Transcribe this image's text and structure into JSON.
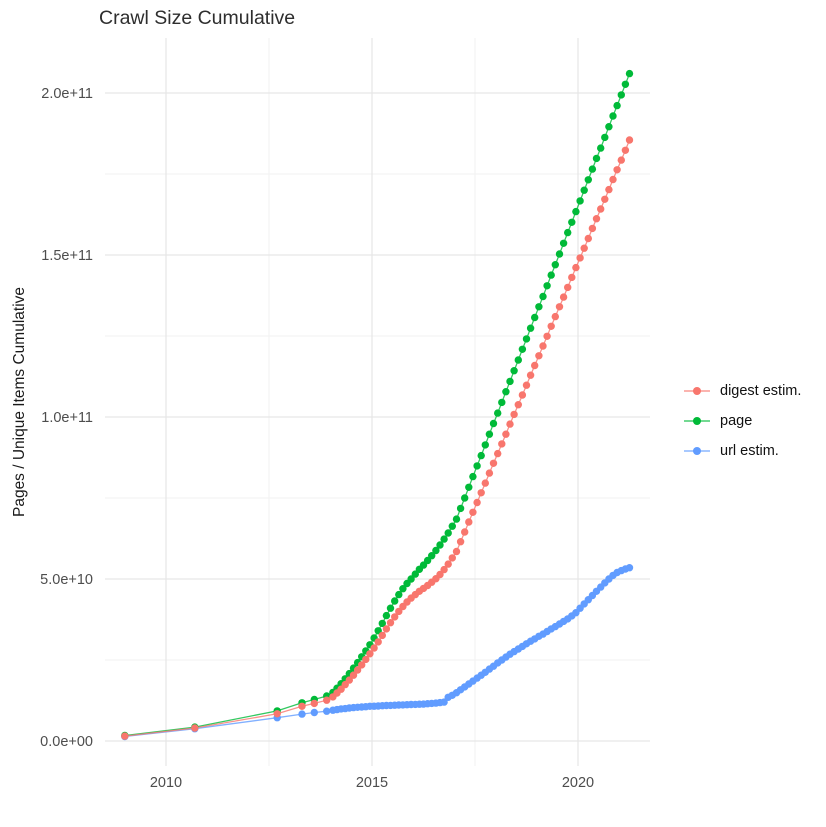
{
  "chart_data": {
    "type": "scatter",
    "title": "Crawl Size Cumulative",
    "xlabel": "",
    "ylabel": "Pages / Unique Items Cumulative",
    "value_unit": "count (values_e9 are billions, i.e. value * 1e9)",
    "xlim": [
      2008.5,
      2021.75
    ],
    "ylim_e9": [
      -7.5,
      217
    ],
    "grid": true,
    "legend_position": "right",
    "xticks": {
      "values": [
        2010,
        2015,
        2020
      ],
      "labels": [
        "2010",
        "2015",
        "2020"
      ]
    },
    "xticks_minor": [
      2012.5,
      2017.5
    ],
    "yticks": {
      "values_e9": [
        0,
        50,
        100,
        150,
        200
      ],
      "labels": [
        "0.0e+00",
        "5.0e+10",
        "1.0e+11",
        "1.5e+11",
        "2.0e+11"
      ]
    },
    "yticks_minor_e9": [
      25,
      75,
      125,
      175
    ],
    "x": [
      2009.0,
      2010.7,
      2012.7,
      2013.3,
      2013.6,
      2013.9,
      2014.05,
      2014.15,
      2014.25,
      2014.35,
      2014.45,
      2014.55,
      2014.65,
      2014.75,
      2014.85,
      2014.95,
      2015.05,
      2015.15,
      2015.25,
      2015.35,
      2015.45,
      2015.55,
      2015.65,
      2015.75,
      2015.85,
      2015.95,
      2016.05,
      2016.15,
      2016.25,
      2016.35,
      2016.45,
      2016.55,
      2016.65,
      2016.75,
      2016.85,
      2016.95,
      2017.05,
      2017.15,
      2017.25,
      2017.35,
      2017.45,
      2017.55,
      2017.65,
      2017.75,
      2017.85,
      2017.95,
      2018.05,
      2018.15,
      2018.25,
      2018.35,
      2018.45,
      2018.55,
      2018.65,
      2018.75,
      2018.85,
      2018.95,
      2019.05,
      2019.15,
      2019.25,
      2019.35,
      2019.45,
      2019.55,
      2019.65,
      2019.75,
      2019.85,
      2019.95,
      2020.05,
      2020.15,
      2020.25,
      2020.35,
      2020.45,
      2020.55,
      2020.65,
      2020.75,
      2020.85,
      2020.95,
      2021.05,
      2021.15,
      2021.25
    ],
    "series": [
      {
        "name": "digest estim.",
        "color": "#F8766D",
        "values_e9": [
          1.5,
          4.0,
          8.4,
          10.7,
          11.6,
          12.6,
          13.6,
          14.8,
          16.0,
          17.4,
          18.8,
          20.3,
          21.9,
          23.5,
          25.2,
          26.9,
          28.7,
          30.6,
          32.6,
          34.6,
          36.5,
          38.3,
          40.0,
          41.5,
          42.9,
          44.1,
          45.2,
          46.2,
          47.1,
          48.0,
          49.0,
          50.1,
          51.4,
          52.9,
          54.6,
          56.5,
          58.5,
          61.5,
          64.5,
          67.6,
          70.6,
          73.6,
          76.6,
          79.6,
          82.7,
          85.7,
          88.7,
          91.7,
          94.7,
          97.8,
          100.8,
          103.8,
          106.8,
          109.8,
          112.9,
          115.9,
          118.9,
          121.9,
          124.9,
          128.0,
          131.0,
          134.0,
          137.0,
          140.0,
          143.1,
          146.1,
          149.1,
          152.1,
          155.1,
          158.2,
          161.2,
          164.2,
          167.2,
          170.2,
          173.3,
          176.3,
          179.3,
          182.3,
          185.5
        ]
      },
      {
        "name": "page",
        "color": "#00BA38",
        "values_e9": [
          1.7,
          4.3,
          9.3,
          11.8,
          12.8,
          13.9,
          15.0,
          16.3,
          17.7,
          19.2,
          20.8,
          22.5,
          24.2,
          26.0,
          27.8,
          29.7,
          31.8,
          34.0,
          36.3,
          38.7,
          41.0,
          43.2,
          45.2,
          47.0,
          48.6,
          50.0,
          51.5,
          53.0,
          54.3,
          55.7,
          57.2,
          58.8,
          60.5,
          62.3,
          64.2,
          66.3,
          68.5,
          71.8,
          75.0,
          78.3,
          81.6,
          84.9,
          88.1,
          91.4,
          94.7,
          98.0,
          101.2,
          104.5,
          107.8,
          111.0,
          114.3,
          117.6,
          120.9,
          124.1,
          127.4,
          130.7,
          134.0,
          137.2,
          140.5,
          143.8,
          147.0,
          150.3,
          153.6,
          156.9,
          160.1,
          163.4,
          166.7,
          170.0,
          173.2,
          176.5,
          179.8,
          183.0,
          186.3,
          189.6,
          192.9,
          196.1,
          199.4,
          202.7,
          206.0
        ]
      },
      {
        "name": "url estim.",
        "color": "#619CFF",
        "values_e9": [
          1.4,
          3.8,
          7.2,
          8.3,
          8.8,
          9.2,
          9.5,
          9.7,
          9.9,
          10.0,
          10.2,
          10.3,
          10.4,
          10.5,
          10.6,
          10.7,
          10.75,
          10.8,
          10.9,
          10.95,
          11.0,
          11.05,
          11.1,
          11.15,
          11.2,
          11.25,
          11.3,
          11.35,
          11.4,
          11.5,
          11.6,
          11.7,
          11.85,
          12.0,
          13.5,
          14.1,
          14.9,
          15.8,
          16.7,
          17.6,
          18.5,
          19.4,
          20.3,
          21.2,
          22.2,
          23.1,
          24.1,
          25.0,
          25.9,
          26.8,
          27.6,
          28.4,
          29.2,
          30.0,
          30.8,
          31.5,
          32.3,
          33.0,
          33.8,
          34.6,
          35.3,
          36.1,
          36.9,
          37.7,
          38.6,
          39.6,
          41.0,
          42.3,
          43.6,
          44.9,
          46.2,
          47.5,
          48.8,
          50.0,
          51.1,
          52.0,
          52.6,
          53.1,
          53.5
        ]
      }
    ],
    "draw_order_indexes": [
      1,
      2,
      0
    ]
  },
  "legend": {
    "items": [
      {
        "label": "digest estim.",
        "color": "#F8766D"
      },
      {
        "label": "page",
        "color": "#00BA38"
      },
      {
        "label": "url estim.",
        "color": "#619CFF"
      }
    ]
  }
}
